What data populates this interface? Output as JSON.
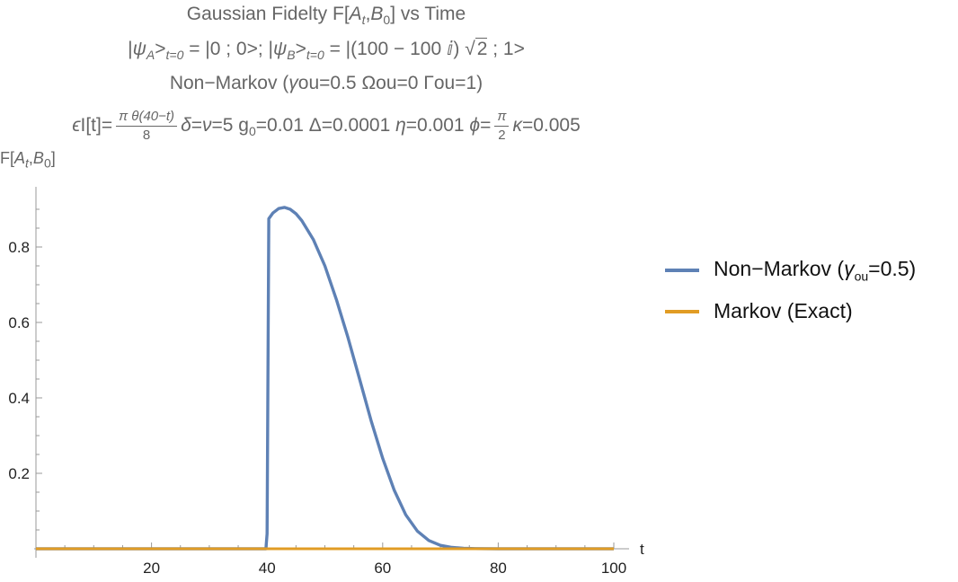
{
  "chart_data": {
    "type": "line",
    "title_lines": [
      "Gaussian Fidelty F[A_t,B_0] vs Time",
      "|ψ_A>_{t=0} = |0 ; 0>; |ψ_B>_{t=0} = |(100 − 100 ⅈ) √2 ; 1>",
      "Non−Markov (γou=0.5  Ωou=0 Γou=1)",
      "ϵI[t]= π θ(40−t)/8  δ=ν=5 g0=0.01 Δ=0.0001 η=0.001 ϕ= π/2 κ=0.005"
    ],
    "xlabel": "t",
    "ylabel": "F[A_t,B_0]",
    "xlim": [
      0,
      100
    ],
    "ylim": [
      0,
      0.93
    ],
    "xticks": [
      20,
      40,
      60,
      80,
      100
    ],
    "yticks": [
      0.2,
      0.4,
      0.6,
      0.8
    ],
    "series": [
      {
        "name": "Non−Markov (γou=0.5)",
        "color": "#5e81b5",
        "x": [
          0,
          39.8,
          40.0,
          40.3,
          41,
          42,
          43,
          44,
          45,
          46,
          48,
          50,
          52,
          54,
          56,
          58,
          60,
          62,
          64,
          66,
          68,
          70,
          72,
          74,
          76,
          80,
          90,
          100
        ],
        "y": [
          0,
          0,
          0.04,
          0.875,
          0.89,
          0.902,
          0.905,
          0.9,
          0.888,
          0.87,
          0.82,
          0.75,
          0.66,
          0.56,
          0.45,
          0.34,
          0.24,
          0.155,
          0.09,
          0.047,
          0.022,
          0.009,
          0.0035,
          0.0012,
          0.0004,
          0,
          0,
          0
        ]
      },
      {
        "name": "Markov (Exact)",
        "color": "#e19c24",
        "x": [
          0,
          100
        ],
        "y": [
          0,
          0
        ]
      }
    ],
    "legend_position": "right"
  },
  "title": {
    "line1_pre": "Gaussian Fidelty F[",
    "line1_A": "A",
    "line1_t": "t",
    "line1_B": "B",
    "line1_0": "0",
    "line1_post": "] vs Time",
    "line2_a": "|",
    "line2_psiA": "ψ",
    "line2_A": "A",
    "line2_gt1": ">",
    "line2_sub1": "t=0",
    "line2_mid1": " = |0 ; 0>; |",
    "line2_psiB": "ψ",
    "line2_B": "B",
    "line2_gt2": ">",
    "line2_sub2": "t=0",
    "line2_mid2": " = |(100 − 100 ",
    "line2_i": "ⅈ",
    "line2_mid3": ") ",
    "line2_sqrt_sym": "√",
    "line2_sqrt_arg": "2",
    "line2_end": " ; 1>",
    "line3_a": "Non−Markov (",
    "line3_g": "γ",
    "line3_b": "ou=0.5  Ωou=0 Γou=1)",
    "line4_eps": "ϵ",
    "line4_a": "I[t]=",
    "line4_frac1_num": "π θ(40−t)",
    "line4_frac1_den": "8",
    "line4_delta": "δ",
    "line4_b": "=",
    "line4_nu": "ν",
    "line4_c": "=5 g",
    "line4_c_sub": "0",
    "line4_d": "=0.01 Δ=0.0001 ",
    "line4_eta": "η",
    "line4_e": "=0.001 ",
    "line4_phi": "ϕ",
    "line4_f": "=",
    "line4_frac2_num": "π",
    "line4_frac2_den": "2",
    "line4_kappa": "κ",
    "line4_g": "=0.005"
  },
  "ylabel_parts": {
    "pre": "F[",
    "A": "A",
    "t": "t",
    "sep": ",",
    "B": "B",
    "zero": "0",
    "post": "]"
  },
  "legend": {
    "item1_pre": "Non−Markov (",
    "item1_gamma": "γ",
    "item1_sub": "ou",
    "item1_post": "=0.5)",
    "item2": "Markov (Exact)"
  }
}
